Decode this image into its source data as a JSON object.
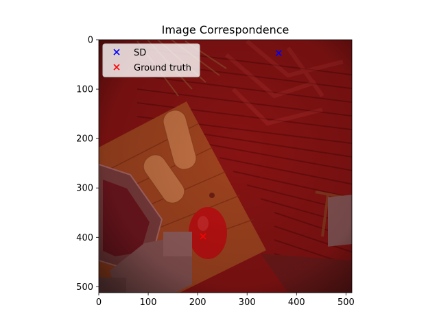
{
  "chart_data": {
    "type": "scatter",
    "title": "Image Correspondence",
    "xlabel": "",
    "ylabel": "",
    "xlim": [
      0,
      512
    ],
    "ylim": [
      512,
      0
    ],
    "xticks": [
      0,
      100,
      200,
      300,
      400,
      500
    ],
    "yticks": [
      0,
      100,
      200,
      300,
      400,
      500
    ],
    "grid": false,
    "legend_position": "top-left",
    "background_image": "overhead photo of a wooden table and deck with a red similarity heatmap overlay",
    "series": [
      {
        "name": "SD",
        "marker": "x",
        "color": "#0000ff",
        "points": [
          {
            "x": 364,
            "y": 27
          }
        ]
      },
      {
        "name": "Ground truth",
        "marker": "x",
        "color": "#ff0000",
        "points": [
          {
            "x": 211,
            "y": 398
          }
        ]
      }
    ]
  }
}
